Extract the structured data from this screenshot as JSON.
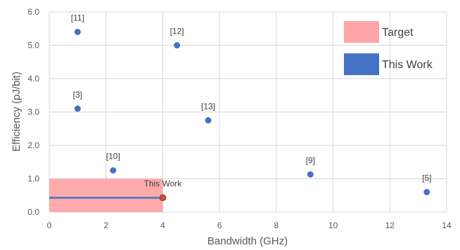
{
  "chart_data": {
    "type": "scatter",
    "xlabel": "Bandwidth (GHz)",
    "ylabel": "Efficiency (pJ/bit)",
    "xlim": [
      0,
      14
    ],
    "ylim": [
      0,
      6
    ],
    "x_ticks": [
      "0",
      "2",
      "4",
      "6",
      "8",
      "10",
      "12",
      "14"
    ],
    "y_ticks": [
      "0.0",
      "1.0",
      "2.0",
      "3.0",
      "4.0",
      "5.0",
      "6.0"
    ],
    "grid": "vertical and horizontal",
    "legend_position": "top-right",
    "colors": {
      "points": "#4472C4",
      "target_fill": "#FFA5A5",
      "this_work_line": "#4472C4",
      "this_work_point": "#C0504D",
      "grid": "#D9D9D9"
    },
    "points": [
      {
        "label": "[11]",
        "x": 1.0,
        "y": 5.4
      },
      {
        "label": "[12]",
        "x": 4.5,
        "y": 5.0
      },
      {
        "label": "[3]",
        "x": 1.0,
        "y": 3.1
      },
      {
        "label": "[13]",
        "x": 5.6,
        "y": 2.75
      },
      {
        "label": "[10]",
        "x": 2.25,
        "y": 1.25
      },
      {
        "label": "[9]",
        "x": 9.2,
        "y": 1.13
      },
      {
        "label": "[5]",
        "x": 13.3,
        "y": 0.6
      }
    ],
    "this_work": {
      "label": "This Work",
      "x": 4.0,
      "y": 0.43
    },
    "target_region": {
      "x": [
        0,
        4
      ],
      "y": [
        0,
        1.0
      ]
    },
    "legend": [
      {
        "name": "Target",
        "color": "#FFA5A5"
      },
      {
        "name": "This Work",
        "color": "#4472C4"
      }
    ]
  }
}
